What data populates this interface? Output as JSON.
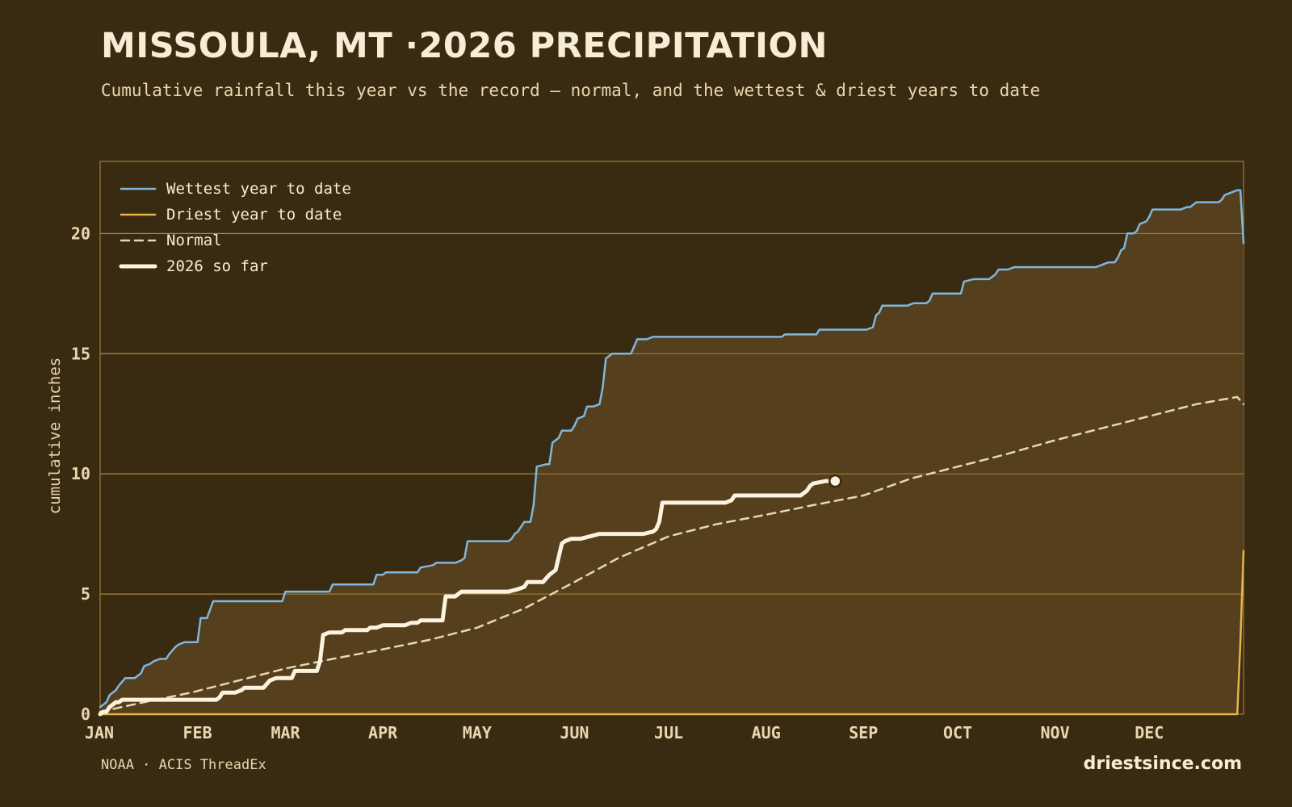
{
  "header": {
    "title": "MISSOULA, MT ·2026 PRECIPITATION",
    "subtitle": "Cumulative rainfall this year vs the record — normal, and the wettest & driest years to date"
  },
  "footer": {
    "source": "NOAA · ACIS ThreadEx",
    "brand": "driestsince.com"
  },
  "colors": {
    "background": "#392b12",
    "fill": "#553f1d",
    "grid": "#b38e3c",
    "wettest": "#7fb7dd",
    "driest": "#e8b24a",
    "normal": "#e8d7b0",
    "current": "#fbf3e0"
  },
  "chart_data": {
    "type": "line",
    "ylabel": "cumulative inches",
    "xlabel": "",
    "xlim": [
      1,
      365
    ],
    "ylim": [
      0,
      23
    ],
    "yticks": [
      0,
      5,
      10,
      15,
      20
    ],
    "x_ticks": [
      {
        "label": "JAN",
        "day": 1
      },
      {
        "label": "FEB",
        "day": 32
      },
      {
        "label": "MAR",
        "day": 60
      },
      {
        "label": "APR",
        "day": 91
      },
      {
        "label": "MAY",
        "day": 121
      },
      {
        "label": "JUN",
        "day": 152
      },
      {
        "label": "JUL",
        "day": 182
      },
      {
        "label": "AUG",
        "day": 213
      },
      {
        "label": "SEP",
        "day": 244
      },
      {
        "label": "OCT",
        "day": 274
      },
      {
        "label": "NOV",
        "day": 305
      },
      {
        "label": "DEC",
        "day": 335
      }
    ],
    "grid": true,
    "legend_position": "top-left",
    "series": [
      {
        "name": "Wettest year to date",
        "style": "solid",
        "points": [
          [
            1,
            0.3
          ],
          [
            3,
            0.5
          ],
          [
            4,
            0.8
          ],
          [
            6,
            1.0
          ],
          [
            7,
            1.2
          ],
          [
            9,
            1.5
          ],
          [
            12,
            1.5
          ],
          [
            13,
            1.6
          ],
          [
            14,
            1.7
          ],
          [
            15,
            2.0
          ],
          [
            17,
            2.1
          ],
          [
            18,
            2.2
          ],
          [
            20,
            2.3
          ],
          [
            22,
            2.3
          ],
          [
            23,
            2.5
          ],
          [
            25,
            2.8
          ],
          [
            26,
            2.9
          ],
          [
            28,
            3.0
          ],
          [
            30,
            3.0
          ],
          [
            31,
            3.0
          ],
          [
            32,
            3.0
          ],
          [
            33,
            4.0
          ],
          [
            35,
            4.0
          ],
          [
            37,
            4.7
          ],
          [
            45,
            4.7
          ],
          [
            50,
            4.7
          ],
          [
            56,
            4.7
          ],
          [
            59,
            4.7
          ],
          [
            60,
            5.1
          ],
          [
            67,
            5.1
          ],
          [
            74,
            5.1
          ],
          [
            75,
            5.4
          ],
          [
            88,
            5.4
          ],
          [
            89,
            5.8
          ],
          [
            91,
            5.8
          ],
          [
            92,
            5.9
          ],
          [
            97,
            5.9
          ],
          [
            102,
            5.9
          ],
          [
            103,
            6.1
          ],
          [
            107,
            6.2
          ],
          [
            108,
            6.3
          ],
          [
            114,
            6.3
          ],
          [
            116,
            6.4
          ],
          [
            117,
            6.5
          ],
          [
            118,
            7.2
          ],
          [
            125,
            7.2
          ],
          [
            126,
            7.2
          ],
          [
            131,
            7.2
          ],
          [
            132,
            7.3
          ],
          [
            133,
            7.5
          ],
          [
            134,
            7.6
          ],
          [
            135,
            7.8
          ],
          [
            136,
            8.0
          ],
          [
            138,
            8.0
          ],
          [
            139,
            8.7
          ],
          [
            140,
            10.3
          ],
          [
            143,
            10.4
          ],
          [
            144,
            10.4
          ],
          [
            145,
            11.3
          ],
          [
            146,
            11.4
          ],
          [
            147,
            11.5
          ],
          [
            148,
            11.8
          ],
          [
            151,
            11.8
          ],
          [
            152,
            12.0
          ],
          [
            153,
            12.3
          ],
          [
            155,
            12.4
          ],
          [
            156,
            12.8
          ],
          [
            158,
            12.8
          ],
          [
            160,
            12.9
          ],
          [
            161,
            13.6
          ],
          [
            162,
            14.8
          ],
          [
            164,
            15.0
          ],
          [
            170,
            15.0
          ],
          [
            172,
            15.6
          ],
          [
            175,
            15.6
          ],
          [
            177,
            15.7
          ],
          [
            200,
            15.7
          ],
          [
            207,
            15.7
          ],
          [
            218,
            15.7
          ],
          [
            219,
            15.8
          ],
          [
            226,
            15.8
          ],
          [
            229,
            15.8
          ],
          [
            230,
            16.0
          ],
          [
            240,
            16.0
          ],
          [
            245,
            16.0
          ],
          [
            247,
            16.1
          ],
          [
            248,
            16.6
          ],
          [
            249,
            16.7
          ],
          [
            250,
            17.0
          ],
          [
            258,
            17.0
          ],
          [
            260,
            17.1
          ],
          [
            264,
            17.1
          ],
          [
            265,
            17.2
          ],
          [
            266,
            17.5
          ],
          [
            275,
            17.5
          ],
          [
            276,
            18.0
          ],
          [
            279,
            18.1
          ],
          [
            284,
            18.1
          ],
          [
            285,
            18.2
          ],
          [
            286,
            18.3
          ],
          [
            287,
            18.5
          ],
          [
            290,
            18.5
          ],
          [
            292,
            18.6
          ],
          [
            308,
            18.6
          ],
          [
            318,
            18.6
          ],
          [
            320,
            18.7
          ],
          [
            322,
            18.8
          ],
          [
            324,
            18.8
          ],
          [
            325,
            19.0
          ],
          [
            326,
            19.3
          ],
          [
            327,
            19.4
          ],
          [
            328,
            20.0
          ],
          [
            330,
            20.0
          ],
          [
            331,
            20.1
          ],
          [
            332,
            20.4
          ],
          [
            334,
            20.5
          ],
          [
            335,
            20.7
          ],
          [
            336,
            21.0
          ],
          [
            345,
            21.0
          ],
          [
            347,
            21.1
          ],
          [
            348,
            21.1
          ],
          [
            350,
            21.3
          ],
          [
            357,
            21.3
          ],
          [
            358,
            21.4
          ],
          [
            359,
            21.6
          ],
          [
            361,
            21.7
          ],
          [
            363,
            21.8
          ],
          [
            364,
            21.8
          ],
          [
            365,
            19.6
          ]
        ]
      },
      {
        "name": "Driest year to date",
        "style": "solid",
        "points": [
          [
            1,
            0.0
          ],
          [
            100,
            0.0
          ],
          [
            200,
            0.0
          ],
          [
            300,
            0.0
          ],
          [
            363,
            0.0
          ],
          [
            364,
            3.0
          ],
          [
            365,
            6.8
          ]
        ]
      },
      {
        "name": "Normal",
        "style": "dashed",
        "points": [
          [
            1,
            0.1
          ],
          [
            15,
            0.5
          ],
          [
            30,
            0.9
          ],
          [
            45,
            1.4
          ],
          [
            60,
            1.9
          ],
          [
            75,
            2.3
          ],
          [
            91,
            2.7
          ],
          [
            106,
            3.1
          ],
          [
            121,
            3.6
          ],
          [
            136,
            4.4
          ],
          [
            152,
            5.5
          ],
          [
            166,
            6.5
          ],
          [
            182,
            7.4
          ],
          [
            197,
            7.9
          ],
          [
            213,
            8.3
          ],
          [
            228,
            8.7
          ],
          [
            244,
            9.1
          ],
          [
            259,
            9.8
          ],
          [
            274,
            10.3
          ],
          [
            289,
            10.8
          ],
          [
            305,
            11.4
          ],
          [
            320,
            11.9
          ],
          [
            335,
            12.4
          ],
          [
            350,
            12.9
          ],
          [
            363,
            13.2
          ],
          [
            365,
            12.9
          ]
        ]
      },
      {
        "name": "2026 so far",
        "style": "bold",
        "points": [
          [
            1,
            0.0
          ],
          [
            2,
            0.1
          ],
          [
            3,
            0.1
          ],
          [
            4,
            0.3
          ],
          [
            5,
            0.4
          ],
          [
            6,
            0.5
          ],
          [
            7,
            0.5
          ],
          [
            8,
            0.6
          ],
          [
            20,
            0.6
          ],
          [
            30,
            0.6
          ],
          [
            38,
            0.6
          ],
          [
            39,
            0.7
          ],
          [
            40,
            0.9
          ],
          [
            44,
            0.9
          ],
          [
            46,
            1.0
          ],
          [
            47,
            1.1
          ],
          [
            50,
            1.1
          ],
          [
            53,
            1.1
          ],
          [
            55,
            1.4
          ],
          [
            57,
            1.5
          ],
          [
            62,
            1.5
          ],
          [
            63,
            1.8
          ],
          [
            70,
            1.8
          ],
          [
            71,
            2.2
          ],
          [
            72,
            3.3
          ],
          [
            74,
            3.4
          ],
          [
            78,
            3.4
          ],
          [
            79,
            3.5
          ],
          [
            86,
            3.5
          ],
          [
            87,
            3.6
          ],
          [
            89,
            3.6
          ],
          [
            91,
            3.7
          ],
          [
            98,
            3.7
          ],
          [
            100,
            3.8
          ],
          [
            102,
            3.8
          ],
          [
            103,
            3.9
          ],
          [
            110,
            3.9
          ],
          [
            111,
            4.9
          ],
          [
            114,
            4.9
          ],
          [
            116,
            5.1
          ],
          [
            124,
            5.1
          ],
          [
            131,
            5.1
          ],
          [
            134,
            5.2
          ],
          [
            136,
            5.3
          ],
          [
            137,
            5.5
          ],
          [
            142,
            5.5
          ],
          [
            144,
            5.8
          ],
          [
            146,
            6.0
          ],
          [
            148,
            7.1
          ],
          [
            149,
            7.2
          ],
          [
            151,
            7.3
          ],
          [
            154,
            7.3
          ],
          [
            157,
            7.4
          ],
          [
            160,
            7.5
          ],
          [
            168,
            7.5
          ],
          [
            174,
            7.5
          ],
          [
            177,
            7.6
          ],
          [
            178,
            7.7
          ],
          [
            179,
            8.0
          ],
          [
            180,
            8.8
          ],
          [
            190,
            8.8
          ],
          [
            200,
            8.8
          ],
          [
            202,
            8.9
          ],
          [
            203,
            9.1
          ],
          [
            215,
            9.1
          ],
          [
            224,
            9.1
          ],
          [
            226,
            9.3
          ],
          [
            227,
            9.5
          ],
          [
            228,
            9.6
          ],
          [
            232,
            9.7
          ],
          [
            235,
            9.7
          ]
        ]
      }
    ]
  }
}
